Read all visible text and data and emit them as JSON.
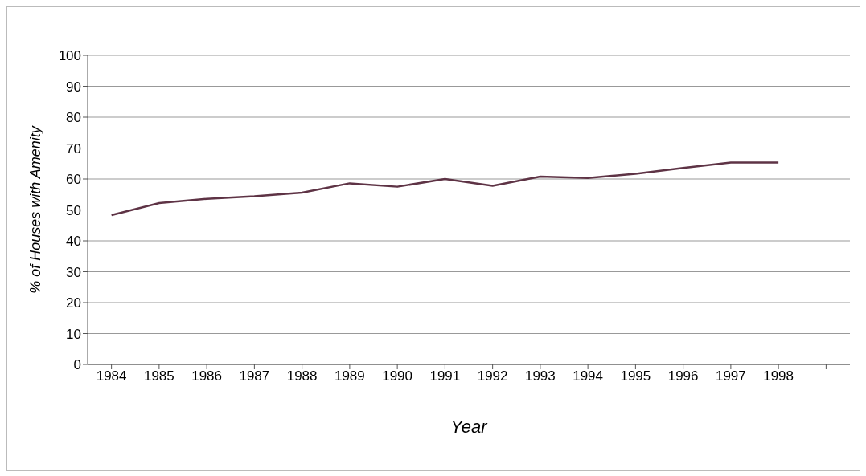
{
  "chart_data": {
    "type": "line",
    "xlabel": "Year",
    "ylabel": "% of Houses with Amenity",
    "categories": [
      "1984",
      "1985",
      "1986",
      "1987",
      "1988",
      "1989",
      "1990",
      "1991",
      "1992",
      "1993",
      "1994",
      "1995",
      "1996",
      "1997",
      "1998",
      null
    ],
    "series": [
      {
        "color": "#5e3345",
        "values": [
          48.3,
          52.2,
          53.6,
          54.4,
          55.6,
          58.6,
          57.5,
          60,
          57.8,
          60.8,
          60.3,
          61.7,
          63.6,
          65.3,
          65.3,
          null
        ]
      }
    ],
    "ylim": [
      0,
      100
    ],
    "yticks": [
      0,
      10,
      20,
      30,
      40,
      50,
      60,
      70,
      80,
      90,
      100
    ],
    "grid": "y",
    "marker": "none"
  }
}
